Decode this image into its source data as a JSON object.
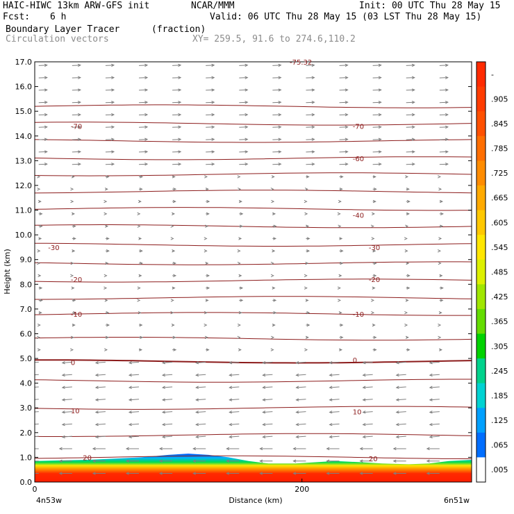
{
  "header": {
    "model": "HAIC-HIWC 13km ARW-GFS init",
    "org": "NCAR/MMM",
    "init": "Init: 00 UTC Thu 28 May 15",
    "fcst_label": "Fcst:",
    "fcst_value": "6 h",
    "valid": "Valid: 06 UTC Thu 28 May 15 (03 LST Thu 28 May 15)",
    "field": "Boundary Layer Tracer",
    "field_units": "(fraction)",
    "overlay": "Circulation vectors",
    "xy": "XY= 259.5, 91.6 to 274.6,110.2"
  },
  "colors": {
    "isotherm": "#8b1a1a",
    "vector": "#7f7f7f",
    "frame": "#000000"
  },
  "chart_data": {
    "type": "heatmap",
    "xlabel": "Distance (km)",
    "ylabel": "Height (km)",
    "ylim": [
      0,
      17
    ],
    "xlim": [
      0,
      327
    ],
    "y_ticks": [
      "0.0",
      "1.0",
      "2.0",
      "3.0",
      "4.0",
      "5.0",
      "6.0",
      "7.0",
      "8.0",
      "9.0",
      "10.0",
      "11.0",
      "12.0",
      "13.0",
      "14.0",
      "15.0",
      "16.0",
      "17.0"
    ],
    "x_ticks": [
      {
        "value": 0,
        "label": "0"
      },
      {
        "value": 200,
        "label": "200"
      }
    ],
    "x_end_labels": {
      "left": "4n53w",
      "right": "6n51w"
    },
    "colorbar": {
      "labels": [
        "-",
        ".905",
        ".845",
        ".785",
        ".725",
        ".665",
        ".605",
        ".545",
        ".485",
        ".425",
        ".365",
        ".305",
        ".245",
        ".185",
        ".125",
        ".065",
        ".005"
      ],
      "colors": [
        "#ff2a00",
        "#ff3c00",
        "#ff5000",
        "#ff6e00",
        "#ff8c00",
        "#ffaa00",
        "#ffc800",
        "#ffe600",
        "#dcf000",
        "#a0e600",
        "#64dc00",
        "#00d200",
        "#00d28c",
        "#00d2d2",
        "#00a0ff",
        "#006eff",
        "#ffffff"
      ]
    },
    "isotherm_labels": [
      {
        "x": 27,
        "y": 14.4,
        "text": "-70"
      },
      {
        "x": 238,
        "y": 14.4,
        "text": "-70"
      },
      {
        "x": 238,
        "y": 13.1,
        "text": "-60"
      },
      {
        "x": 238,
        "y": 10.8,
        "text": "-40"
      },
      {
        "x": 10,
        "y": 9.5,
        "text": "-30"
      },
      {
        "x": 250,
        "y": 9.5,
        "text": "-30"
      },
      {
        "x": 27,
        "y": 8.2,
        "text": "-20"
      },
      {
        "x": 250,
        "y": 8.2,
        "text": "-20"
      },
      {
        "x": 27,
        "y": 6.8,
        "text": "-10"
      },
      {
        "x": 238,
        "y": 6.8,
        "text": "-10"
      },
      {
        "x": 27,
        "y": 4.85,
        "text": "0"
      },
      {
        "x": 238,
        "y": 4.95,
        "text": "0"
      },
      {
        "x": 27,
        "y": 2.9,
        "text": "10"
      },
      {
        "x": 238,
        "y": 2.85,
        "text": "10"
      },
      {
        "x": 36,
        "y": 1.0,
        "text": "20"
      },
      {
        "x": 250,
        "y": 0.95,
        "text": "20"
      }
    ],
    "top_partial_label": "-75.32",
    "isotherm_levels_km": [
      15.2,
      14.5,
      13.8,
      13.1,
      12.45,
      11.75,
      11.05,
      10.35,
      9.6,
      8.85,
      8.15,
      7.45,
      6.8,
      5.8,
      4.88,
      4.1,
      3.0,
      1.9,
      1.0
    ],
    "tracer_top_km": [
      [
        0,
        0.85
      ],
      [
        20,
        0.88
      ],
      [
        40,
        0.9
      ],
      [
        60,
        0.95
      ],
      [
        80,
        1.0
      ],
      [
        100,
        1.1
      ],
      [
        115,
        1.15
      ],
      [
        130,
        1.1
      ],
      [
        145,
        1.0
      ],
      [
        160,
        0.85
      ],
      [
        175,
        0.75
      ],
      [
        195,
        0.75
      ],
      [
        210,
        0.8
      ],
      [
        225,
        0.85
      ],
      [
        245,
        0.8
      ],
      [
        260,
        0.75
      ],
      [
        280,
        0.72
      ],
      [
        295,
        0.75
      ],
      [
        310,
        0.85
      ],
      [
        327,
        0.9
      ]
    ]
  }
}
